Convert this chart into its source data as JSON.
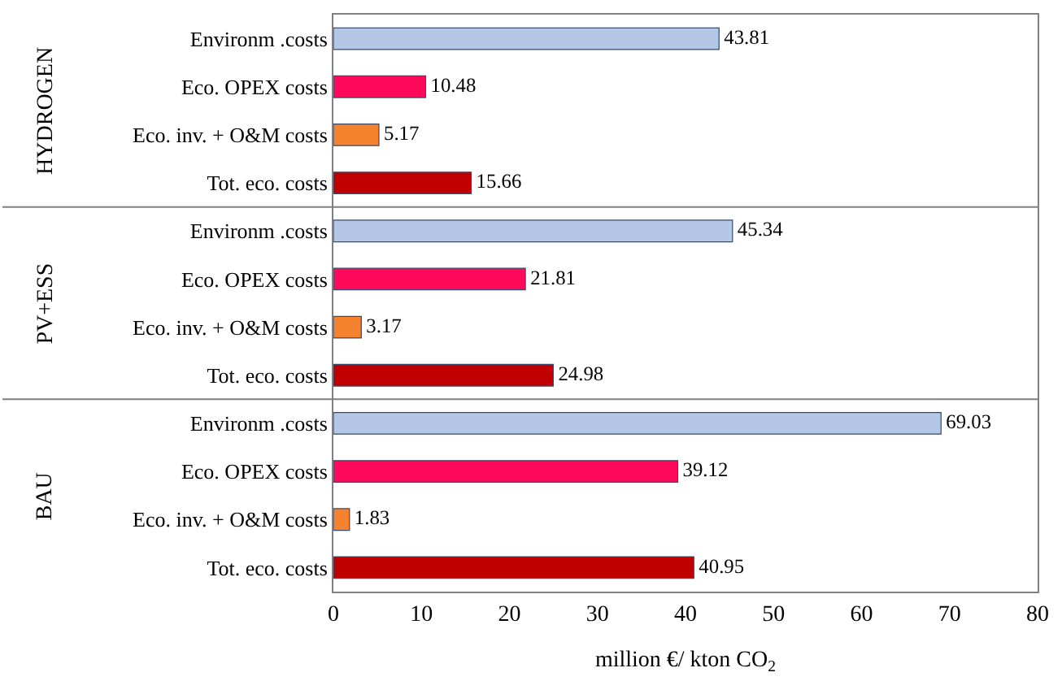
{
  "chart_data": {
    "type": "bar",
    "orientation": "horizontal",
    "xlabel": "million €/ kton CO$_{2}$",
    "categories": [
      "Environm .costs",
      "Eco. OPEX costs",
      "Eco. inv. + O&M costs",
      "Tot. eco. costs",
      "Environm .costs",
      "Eco. OPEX costs",
      "Eco. inv. + O&M costs",
      "Tot. eco. costs",
      "Environm .costs",
      "Eco. OPEX costs",
      "Eco. inv. + O&M costs",
      "Tot. eco. costs"
    ],
    "values": [
      43.81,
      10.48,
      5.17,
      15.66,
      45.34,
      21.81,
      3.17,
      24.98,
      69.03,
      39.12,
      1.83,
      40.95
    ],
    "colors": [
      "#b4c7e7",
      "#ff0a5a",
      "#f4822f",
      "#c00000",
      "#b4c7e7",
      "#ff0a5a",
      "#f4822f",
      "#c00000",
      "#b4c7e7",
      "#ff0a5a",
      "#f4822f",
      "#c00000"
    ],
    "annotations": [
      "HYDROGEN",
      "PV+ESS",
      "BAU"
    ],
    "data_labels": true,
    "xlim": [
      0,
      80
    ],
    "xticks": [
      0,
      10,
      20,
      30,
      40,
      50,
      60,
      70,
      80
    ]
  }
}
